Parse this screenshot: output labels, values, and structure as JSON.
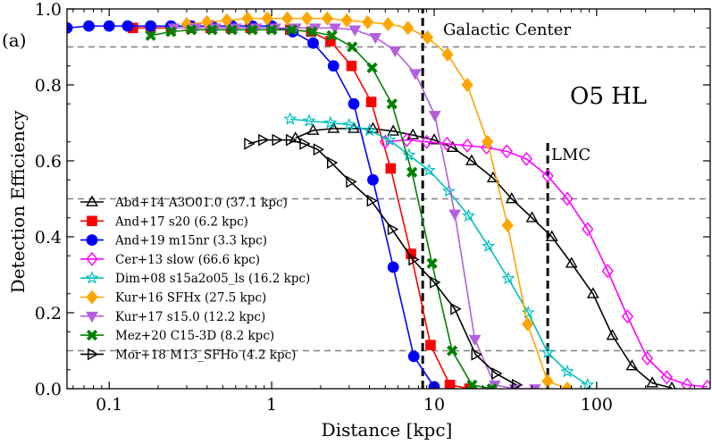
{
  "chart_data": {
    "type": "line",
    "panel_label": "(a)",
    "xlabel": "Distance [kpc]",
    "ylabel": "Detection Efficiency",
    "xscale": "log",
    "xlim": [
      0.055,
      500
    ],
    "ylim": [
      0,
      1.0
    ],
    "x_ticks": [
      {
        "value": 0.1,
        "label": "0.1"
      },
      {
        "value": 1,
        "label": "1"
      },
      {
        "value": 10,
        "label": "10"
      },
      {
        "value": 100,
        "label": "100"
      }
    ],
    "y_ticks": [
      {
        "value": 0.0,
        "label": "0.0"
      },
      {
        "value": 0.2,
        "label": "0.2"
      },
      {
        "value": 0.4,
        "label": "0.4"
      },
      {
        "value": 0.6,
        "label": "0.6"
      },
      {
        "value": 0.8,
        "label": "0.8"
      },
      {
        "value": 1.0,
        "label": "1.0"
      }
    ],
    "scenario_label": "O5 HL",
    "hlines": [
      0.9,
      0.5,
      0.1
    ],
    "vlines": [
      {
        "x": 8.5,
        "label": "Galactic Center"
      },
      {
        "x": 50,
        "label": "LMC"
      }
    ],
    "legend_position": "lower-left",
    "series": [
      {
        "name": "Abd+14 A3O01.0 (37.1 kpc)",
        "color": "#000000",
        "marker": "triangle-up",
        "filled": false,
        "x": [
          1.4,
          1.8,
          2.4,
          3.2,
          4.2,
          5.6,
          7.4,
          10,
          13,
          17,
          23,
          30,
          40,
          53,
          70,
          95,
          125,
          165,
          220,
          290
        ],
        "y": [
          0.66,
          0.68,
          0.685,
          0.685,
          0.685,
          0.678,
          0.668,
          0.655,
          0.635,
          0.6,
          0.555,
          0.5,
          0.45,
          0.4,
          0.33,
          0.25,
          0.14,
          0.06,
          0.015,
          0.002
        ]
      },
      {
        "name": "And+17 s20 (6.2 kpc)",
        "color": "#ff0000",
        "marker": "square",
        "filled": true,
        "x": [
          0.14,
          0.18,
          0.24,
          0.32,
          0.42,
          0.56,
          0.74,
          1.0,
          1.3,
          1.75,
          2.3,
          3.1,
          4.1,
          5.4,
          7.2,
          9.5,
          12.5,
          16.5
        ],
        "y": [
          0.95,
          0.95,
          0.95,
          0.95,
          0.95,
          0.95,
          0.95,
          0.95,
          0.945,
          0.94,
          0.915,
          0.85,
          0.755,
          0.58,
          0.355,
          0.115,
          0.01,
          0.0
        ]
      },
      {
        "name": "And+19 m15nr (3.3 kpc)",
        "color": "#0000ff",
        "marker": "circle",
        "filled": true,
        "x": [
          0.055,
          0.075,
          0.1,
          0.13,
          0.18,
          0.24,
          0.32,
          0.43,
          0.57,
          0.76,
          1.0,
          1.35,
          1.8,
          2.4,
          3.2,
          4.2,
          5.6,
          7.5,
          10
        ],
        "y": [
          0.95,
          0.955,
          0.955,
          0.955,
          0.955,
          0.955,
          0.955,
          0.955,
          0.955,
          0.955,
          0.955,
          0.94,
          0.91,
          0.85,
          0.75,
          0.55,
          0.32,
          0.085,
          0.005
        ]
      },
      {
        "name": "Cer+13 slow (66.6 kpc)",
        "color": "#ff00ff",
        "marker": "diamond",
        "filled": false,
        "x": [
          5,
          6.8,
          9,
          12,
          16,
          21,
          28,
          37,
          50,
          66,
          88,
          117,
          155,
          205,
          270,
          360,
          480
        ],
        "y": [
          0.65,
          0.655,
          0.65,
          0.645,
          0.64,
          0.635,
          0.625,
          0.605,
          0.56,
          0.5,
          0.42,
          0.31,
          0.19,
          0.08,
          0.03,
          0.01,
          0.005
        ]
      },
      {
        "name": "Dim+08 s15a2o05_ls (16.2 kpc)",
        "color": "#00bfbf",
        "marker": "star",
        "filled": false,
        "x": [
          1.3,
          1.7,
          2.3,
          3.0,
          4.0,
          5.3,
          7.0,
          9.3,
          12.3,
          16.3,
          21.6,
          28.6,
          37.9,
          50,
          66,
          88
        ],
        "y": [
          0.71,
          0.705,
          0.7,
          0.695,
          0.68,
          0.655,
          0.615,
          0.575,
          0.52,
          0.455,
          0.375,
          0.29,
          0.2,
          0.095,
          0.045,
          0.01
        ]
      },
      {
        "name": "Kur+16 SFHx (27.5 kpc)",
        "color": "#ffa500",
        "marker": "diamond",
        "filled": true,
        "x": [
          0.3,
          0.4,
          0.53,
          0.71,
          0.94,
          1.25,
          1.65,
          2.2,
          2.9,
          3.9,
          5.2,
          6.9,
          9.1,
          12.1,
          16,
          21.3,
          28.3,
          37.6,
          49.9,
          66
        ],
        "y": [
          0.96,
          0.965,
          0.97,
          0.975,
          0.975,
          0.975,
          0.975,
          0.975,
          0.97,
          0.965,
          0.96,
          0.95,
          0.925,
          0.88,
          0.8,
          0.65,
          0.43,
          0.17,
          0.02,
          0.0
        ]
      },
      {
        "name": "Kur+17 s15.0 (12.2 kpc)",
        "color": "#b35fdf",
        "marker": "triangle-down",
        "filled": true,
        "x": [
          0.25,
          0.34,
          0.45,
          0.6,
          0.8,
          1.05,
          1.4,
          1.85,
          2.45,
          3.25,
          4.35,
          5.75,
          7.65,
          10.1,
          13.4,
          17.8,
          23.6,
          31.4,
          41.7
        ],
        "y": [
          0.95,
          0.95,
          0.95,
          0.95,
          0.95,
          0.95,
          0.95,
          0.95,
          0.95,
          0.945,
          0.925,
          0.89,
          0.83,
          0.72,
          0.46,
          0.13,
          0.01,
          0.0,
          0.0
        ]
      },
      {
        "name": "Mez+20 C15-3D (8.2 kpc)",
        "color": "#008000",
        "marker": "x",
        "filled": true,
        "x": [
          0.18,
          0.24,
          0.32,
          0.43,
          0.57,
          0.76,
          1.0,
          1.33,
          1.77,
          2.35,
          3.13,
          4.15,
          5.5,
          7.3,
          9.7,
          12.9,
          17.1,
          22.7
        ],
        "y": [
          0.93,
          0.94,
          0.945,
          0.945,
          0.945,
          0.945,
          0.945,
          0.945,
          0.94,
          0.93,
          0.9,
          0.845,
          0.75,
          0.57,
          0.33,
          0.1,
          0.01,
          0.0
        ]
      },
      {
        "name": "Mor+18 M13_SFHo (4.2 kpc)",
        "color": "#000000",
        "marker": "triangle-right",
        "filled": false,
        "x": [
          0.72,
          0.88,
          1.07,
          1.3,
          1.58,
          1.92,
          2.33,
          3.05,
          4.1,
          5.5,
          7.4,
          10,
          13.4,
          18,
          24,
          32
        ],
        "y": [
          0.645,
          0.655,
          0.655,
          0.655,
          0.645,
          0.63,
          0.595,
          0.545,
          0.495,
          0.42,
          0.34,
          0.28,
          0.21,
          0.09,
          0.04,
          0.01
        ]
      }
    ]
  }
}
